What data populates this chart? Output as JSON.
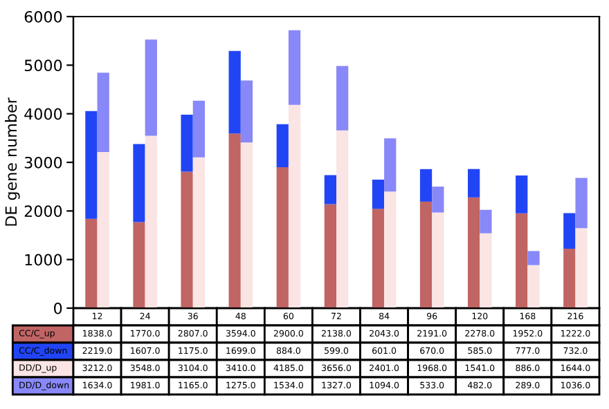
{
  "chart_data": [
    {
      "type": "bar",
      "stacked": true,
      "ylabel": "DE gene number",
      "ylim": [
        0,
        6000
      ],
      "yticks": [
        0,
        1000,
        2000,
        3000,
        4000,
        5000,
        6000
      ],
      "grid": false,
      "data_labels": true,
      "tick_labels": "y",
      "categories": [
        "12",
        "24",
        "36",
        "48",
        "60",
        "72",
        "84",
        "96",
        "120",
        "168",
        "216"
      ],
      "series": [
        {
          "name": "CC/C_up",
          "color": "#c06464",
          "values": [
            1838,
            1770,
            2807,
            3594,
            2900,
            2138,
            2043,
            2191,
            2278,
            1952,
            1222
          ],
          "value_labels": [
            "1838.0",
            "1770.0",
            "2807.0",
            "3594.0",
            "2900.0",
            "2138.0",
            "2043.0",
            "2191.0",
            "2278.0",
            "1952.0",
            "1222.0"
          ]
        },
        {
          "name": "CC/C_down",
          "color": "#2145f5",
          "values": [
            2219,
            1607,
            1175,
            1699,
            884,
            599,
            601,
            670,
            585,
            777,
            732
          ],
          "value_labels": [
            "2219.0",
            "1607.0",
            "1175.0",
            "1699.0",
            "884.0",
            "599.0",
            "601.0",
            "670.0",
            "585.0",
            "777.0",
            "732.0"
          ]
        }
      ]
    },
    {
      "type": "bar",
      "stacked": true,
      "ylim": [
        0,
        6000
      ],
      "grid": false,
      "data_labels": true,
      "tick_labels": false,
      "categories": [
        "12",
        "24",
        "36",
        "48",
        "60",
        "72",
        "84",
        "96",
        "120",
        "168",
        "216"
      ],
      "series": [
        {
          "name": "DD/D_up",
          "color": "#fbe4e4",
          "values": [
            3212,
            3548,
            3104,
            3410,
            4185,
            3656,
            2401,
            1968,
            1541,
            886,
            1644
          ],
          "value_labels": [
            "3212.0",
            "3548.0",
            "3104.0",
            "3410.0",
            "4185.0",
            "3656.0",
            "2401.0",
            "1968.0",
            "1541.0",
            "886.0",
            "1644.0"
          ]
        },
        {
          "name": "DD/D_down",
          "color": "#8888f8",
          "values": [
            1634,
            1981,
            1165,
            1275,
            1534,
            1327,
            1094,
            533,
            482,
            289,
            1036
          ],
          "value_labels": [
            "1634.0",
            "1981.0",
            "1165.0",
            "1275.0",
            "1534.0",
            "1327.0",
            "1094.0",
            "533.0",
            "482.0",
            "289.0",
            "1036.0"
          ]
        }
      ]
    }
  ]
}
